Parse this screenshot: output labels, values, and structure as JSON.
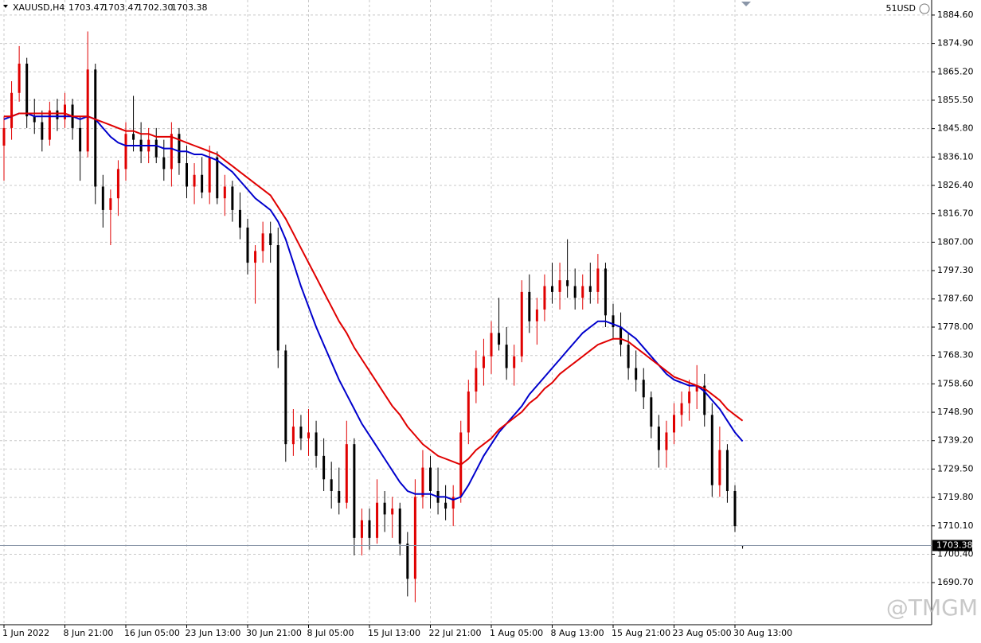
{
  "chart_data": {
    "type": "ohlc",
    "symbol": "XAUUSD,H4",
    "header_values": [
      "1703.47",
      "1703.47",
      "1702.30",
      "1703.38"
    ],
    "account": "51USD",
    "watermark": "@TMGM",
    "up_color": "#e00000",
    "down_color": "#000000",
    "grid": true,
    "ylim": [
      1676.6,
      1889.2
    ],
    "yticks": [
      {
        "value": 1884.6,
        "label": "1884.60"
      },
      {
        "value": 1874.9,
        "label": "1874.90"
      },
      {
        "value": 1865.2,
        "label": "1865.20"
      },
      {
        "value": 1855.5,
        "label": "1855.50"
      },
      {
        "value": 1845.8,
        "label": "1845.80"
      },
      {
        "value": 1836.1,
        "label": "1836.10"
      },
      {
        "value": 1826.4,
        "label": "1826.40"
      },
      {
        "value": 1816.7,
        "label": "1816.70"
      },
      {
        "value": 1807,
        "label": "1807.00"
      },
      {
        "value": 1797.3,
        "label": "1797.30"
      },
      {
        "value": 1787.6,
        "label": "1787.60"
      },
      {
        "value": 1778,
        "label": "1778.00"
      },
      {
        "value": 1768.3,
        "label": "1768.30"
      },
      {
        "value": 1758.6,
        "label": "1758.60"
      },
      {
        "value": 1748.9,
        "label": "1748.90"
      },
      {
        "value": 1739.2,
        "label": "1739.20"
      },
      {
        "value": 1729.5,
        "label": "1729.50"
      },
      {
        "value": 1719.8,
        "label": "1719.80"
      },
      {
        "value": 1710.1,
        "label": "1710.10"
      },
      {
        "value": 1700.4,
        "label": "1700.40"
      },
      {
        "value": 1690.7,
        "label": "1690.70"
      }
    ],
    "last_price": 1703.38,
    "categories": [
      "1 Jun 2022",
      null,
      null,
      null,
      null,
      null,
      null,
      null,
      "8 Jun 21:00",
      null,
      null,
      null,
      null,
      null,
      null,
      null,
      "16 Jun 05:00",
      null,
      null,
      null,
      null,
      null,
      null,
      null,
      "23 Jun 13:00",
      null,
      null,
      null,
      null,
      null,
      null,
      null,
      "30 Jun 21:00",
      null,
      null,
      null,
      null,
      null,
      null,
      null,
      "8 Jul 05:00",
      null,
      null,
      null,
      null,
      null,
      null,
      null,
      "15 Jul 13:00",
      null,
      null,
      null,
      null,
      null,
      null,
      null,
      "22 Jul 21:00",
      null,
      null,
      null,
      null,
      null,
      null,
      null,
      "1 Aug 05:00",
      null,
      null,
      null,
      null,
      null,
      null,
      null,
      "8 Aug 13:00",
      null,
      null,
      null,
      null,
      null,
      null,
      null,
      "15 Aug 21:00",
      null,
      null,
      null,
      null,
      null,
      null,
      null,
      "23 Aug 05:00",
      null,
      null,
      null,
      null,
      null,
      null,
      null,
      "30 Aug 13:00",
      null
    ],
    "ohlc": [
      [
        1840,
        1850,
        1828,
        1846
      ],
      [
        1846,
        1862,
        1842,
        1858
      ],
      [
        1858,
        1874,
        1855,
        1868
      ],
      [
        1868,
        1870,
        1846,
        1850
      ],
      [
        1850,
        1856,
        1844,
        1848
      ],
      [
        1848,
        1852,
        1838,
        1842
      ],
      [
        1842,
        1855,
        1840,
        1852
      ],
      [
        1852,
        1856,
        1845,
        1849
      ],
      [
        1849,
        1858,
        1846,
        1854
      ],
      [
        1854,
        1856,
        1842,
        1846
      ],
      [
        1846,
        1850,
        1828,
        1838
      ],
      [
        1838,
        1879,
        1836,
        1866
      ],
      [
        1866,
        1868,
        1820,
        1826
      ],
      [
        1826,
        1830,
        1812,
        1818
      ],
      [
        1818,
        1825,
        1806,
        1822
      ],
      [
        1822,
        1835,
        1816,
        1832
      ],
      [
        1832,
        1848,
        1828,
        1844
      ],
      [
        1844,
        1857,
        1838,
        1842
      ],
      [
        1842,
        1848,
        1834,
        1838
      ],
      [
        1838,
        1846,
        1834,
        1842
      ],
      [
        1842,
        1846,
        1834,
        1836
      ],
      [
        1836,
        1842,
        1828,
        1832
      ],
      [
        1832,
        1848,
        1826,
        1844
      ],
      [
        1844,
        1846,
        1830,
        1834
      ],
      [
        1834,
        1840,
        1822,
        1826
      ],
      [
        1826,
        1834,
        1820,
        1830
      ],
      [
        1830,
        1836,
        1822,
        1824
      ],
      [
        1824,
        1840,
        1820,
        1836
      ],
      [
        1836,
        1838,
        1820,
        1822
      ],
      [
        1822,
        1830,
        1816,
        1826
      ],
      [
        1826,
        1828,
        1814,
        1818
      ],
      [
        1818,
        1824,
        1808,
        1812
      ],
      [
        1812,
        1815,
        1796,
        1800
      ],
      [
        1800,
        1806,
        1786,
        1804
      ],
      [
        1804,
        1814,
        1800,
        1810
      ],
      [
        1810,
        1814,
        1800,
        1806
      ],
      [
        1806,
        1812,
        1764,
        1770
      ],
      [
        1770,
        1772,
        1732,
        1738
      ],
      [
        1738,
        1750,
        1734,
        1744
      ],
      [
        1744,
        1748,
        1736,
        1740
      ],
      [
        1740,
        1750,
        1734,
        1742
      ],
      [
        1742,
        1746,
        1730,
        1734
      ],
      [
        1734,
        1740,
        1722,
        1726
      ],
      [
        1726,
        1732,
        1716,
        1722
      ],
      [
        1722,
        1730,
        1714,
        1718
      ],
      [
        1718,
        1746,
        1716,
        1738
      ],
      [
        1738,
        1740,
        1700,
        1706
      ],
      [
        1706,
        1716,
        1700,
        1712
      ],
      [
        1712,
        1716,
        1702,
        1706
      ],
      [
        1706,
        1726,
        1704,
        1718
      ],
      [
        1718,
        1722,
        1708,
        1714
      ],
      [
        1714,
        1720,
        1706,
        1716
      ],
      [
        1716,
        1718,
        1700,
        1704
      ],
      [
        1704,
        1708,
        1686,
        1692
      ],
      [
        1692,
        1726,
        1684,
        1720
      ],
      [
        1720,
        1736,
        1716,
        1730
      ],
      [
        1730,
        1734,
        1716,
        1722
      ],
      [
        1722,
        1730,
        1714,
        1718
      ],
      [
        1718,
        1724,
        1712,
        1716
      ],
      [
        1716,
        1724,
        1710,
        1720
      ],
      [
        1720,
        1746,
        1718,
        1742
      ],
      [
        1742,
        1760,
        1738,
        1756
      ],
      [
        1756,
        1770,
        1752,
        1764
      ],
      [
        1764,
        1774,
        1758,
        1768
      ],
      [
        1768,
        1780,
        1762,
        1776
      ],
      [
        1776,
        1788,
        1770,
        1772
      ],
      [
        1772,
        1778,
        1760,
        1764
      ],
      [
        1764,
        1772,
        1758,
        1768
      ],
      [
        1768,
        1794,
        1766,
        1790
      ],
      [
        1790,
        1796,
        1776,
        1780
      ],
      [
        1780,
        1788,
        1772,
        1784
      ],
      [
        1784,
        1796,
        1780,
        1792
      ],
      [
        1792,
        1800,
        1786,
        1790
      ],
      [
        1790,
        1800,
        1784,
        1794
      ],
      [
        1794,
        1808,
        1788,
        1792
      ],
      [
        1792,
        1798,
        1784,
        1788
      ],
      [
        1788,
        1796,
        1784,
        1792
      ],
      [
        1792,
        1800,
        1786,
        1790
      ],
      [
        1790,
        1803,
        1786,
        1798
      ],
      [
        1798,
        1800,
        1778,
        1782
      ],
      [
        1782,
        1786,
        1774,
        1778
      ],
      [
        1778,
        1783,
        1768,
        1772
      ],
      [
        1772,
        1776,
        1760,
        1764
      ],
      [
        1764,
        1770,
        1756,
        1760
      ],
      [
        1760,
        1764,
        1750,
        1754
      ],
      [
        1754,
        1756,
        1740,
        1744
      ],
      [
        1744,
        1748,
        1730,
        1736
      ],
      [
        1736,
        1746,
        1730,
        1742
      ],
      [
        1742,
        1752,
        1738,
        1748
      ],
      [
        1748,
        1756,
        1744,
        1752
      ],
      [
        1752,
        1760,
        1746,
        1756
      ],
      [
        1756,
        1765,
        1750,
        1758
      ],
      [
        1758,
        1762,
        1744,
        1748
      ],
      [
        1748,
        1752,
        1720,
        1724
      ],
      [
        1724,
        1744,
        1720,
        1736
      ],
      [
        1736,
        1738,
        1718,
        1722
      ],
      [
        1722,
        1724,
        1708,
        1710
      ],
      [
        1703.47,
        1703.47,
        1702.3,
        1703.38
      ]
    ],
    "series": [
      {
        "color": "#0000cc",
        "values": [
          1849,
          1850,
          1851,
          1851,
          1850,
          1850,
          1850,
          1850,
          1850,
          1850,
          1849,
          1850,
          1849,
          1846,
          1843,
          1841,
          1840,
          1840,
          1840,
          1840,
          1840,
          1839,
          1839,
          1838,
          1838,
          1837,
          1837,
          1836,
          1835,
          1833,
          1831,
          1828,
          1825,
          1822,
          1820,
          1818,
          1814,
          1808,
          1800,
          1792,
          1785,
          1778,
          1772,
          1766,
          1760,
          1755,
          1750,
          1745,
          1741,
          1737,
          1733,
          1729,
          1725,
          1722,
          1721,
          1721,
          1721,
          1720,
          1720,
          1719,
          1720,
          1724,
          1729,
          1734,
          1738,
          1742,
          1745,
          1748,
          1751,
          1755,
          1758,
          1761,
          1764,
          1767,
          1770,
          1773,
          1776,
          1778,
          1780,
          1780,
          1779,
          1778,
          1776,
          1774,
          1771,
          1768,
          1765,
          1762,
          1760,
          1759,
          1758,
          1758,
          1756,
          1753,
          1750,
          1746,
          1742,
          1739
        ]
      },
      {
        "color": "#e00000",
        "values": [
          1850,
          1850,
          1851,
          1851,
          1851,
          1851,
          1851,
          1851,
          1851,
          1850,
          1850,
          1850,
          1849,
          1848,
          1847,
          1846,
          1845,
          1845,
          1844,
          1844,
          1843,
          1843,
          1843,
          1842,
          1841,
          1840,
          1839,
          1838,
          1837,
          1835,
          1833,
          1831,
          1829,
          1827,
          1825,
          1823,
          1819,
          1815,
          1810,
          1805,
          1800,
          1795,
          1790,
          1785,
          1780,
          1776,
          1771,
          1767,
          1763,
          1759,
          1755,
          1751,
          1748,
          1744,
          1741,
          1738,
          1736,
          1734,
          1733,
          1732,
          1731,
          1733,
          1736,
          1738,
          1740,
          1743,
          1745,
          1747,
          1749,
          1752,
          1754,
          1757,
          1759,
          1762,
          1764,
          1766,
          1768,
          1770,
          1772,
          1773,
          1774,
          1774,
          1773,
          1771,
          1769,
          1767,
          1765,
          1763,
          1761,
          1760,
          1759,
          1758,
          1757,
          1755,
          1753,
          1750,
          1748,
          1746
        ]
      }
    ]
  }
}
